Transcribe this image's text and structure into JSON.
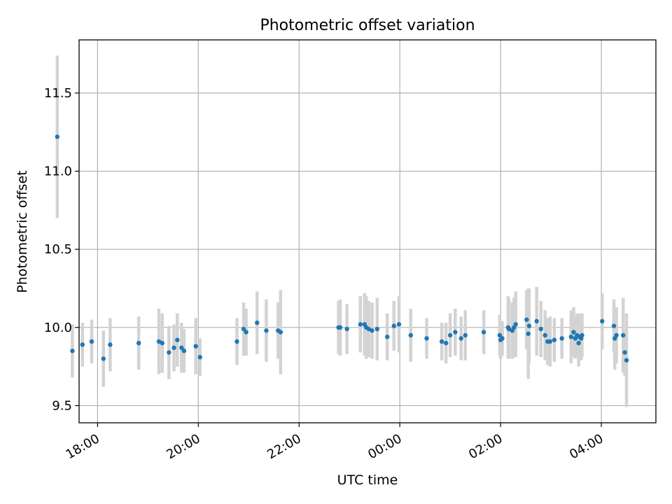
{
  "chart_data": {
    "type": "scatter",
    "title": "Photometric offset variation",
    "xlabel": "UTC time",
    "ylabel": "Photometric offset",
    "xlim": [
      "17:38",
      "05:05"
    ],
    "ylim": [
      9.39,
      11.84
    ],
    "x_ticks": [
      "18:00",
      "20:00",
      "22:00",
      "00:00",
      "02:00",
      "04:00"
    ],
    "y_ticks": [
      "9.5",
      "10.0",
      "10.5",
      "11.0",
      "11.5"
    ],
    "grid": true,
    "errorbar_color": "#d3d3d3",
    "point_color": "#1f77b4",
    "series": [
      {
        "x": [
          "17:12",
          "17:30",
          "17:42",
          "17:53",
          "18:07",
          "18:15",
          "18:49",
          "19:13",
          "19:17",
          "19:25",
          "19:31",
          "19:35",
          "19:40",
          "19:43",
          "19:57",
          "20:02",
          "20:46",
          "20:54",
          "20:57",
          "21:10",
          "21:21",
          "21:35",
          "21:38",
          "22:47",
          "22:49",
          "22:57",
          "23:13",
          "23:18",
          "23:20",
          "23:23",
          "23:27",
          "23:33",
          "23:45",
          "23:53",
          "23:59",
          "00:13",
          "00:32",
          "00:50",
          "00:55",
          "01:00",
          "01:06",
          "01:13",
          "01:18",
          "01:40",
          "01:59",
          "02:00",
          "02:02",
          "02:09",
          "02:10",
          "02:14",
          "02:16",
          "02:18",
          "02:31",
          "02:33",
          "02:34",
          "02:43",
          "02:48",
          "02:53",
          "02:56",
          "02:59",
          "03:04",
          "03:13",
          "03:24",
          "03:27",
          "03:29",
          "03:31",
          "03:33",
          "03:34",
          "03:36",
          "03:37",
          "04:01",
          "04:15",
          "04:16",
          "04:18",
          "04:26",
          "04:28",
          "04:30"
        ],
        "y": [
          11.22,
          9.85,
          9.89,
          9.91,
          9.8,
          9.89,
          9.9,
          9.91,
          9.9,
          9.84,
          9.87,
          9.92,
          9.87,
          9.85,
          9.88,
          9.81,
          9.91,
          9.99,
          9.97,
          10.03,
          9.98,
          9.98,
          9.97,
          10.0,
          10.0,
          9.99,
          10.02,
          10.02,
          10.0,
          9.99,
          9.98,
          9.99,
          9.94,
          10.01,
          10.02,
          9.95,
          9.93,
          9.91,
          9.9,
          9.95,
          9.97,
          9.93,
          9.95,
          9.97,
          9.95,
          9.92,
          9.93,
          10.0,
          9.99,
          9.98,
          10.0,
          10.02,
          10.05,
          9.96,
          10.01,
          10.04,
          9.99,
          9.95,
          9.91,
          9.91,
          9.92,
          9.93,
          9.94,
          9.97,
          9.93,
          9.95,
          9.9,
          9.94,
          9.93,
          9.95,
          10.04,
          10.01,
          9.93,
          9.95,
          9.95,
          9.84,
          9.79
        ],
        "yerr": [
          0.52,
          0.17,
          0.14,
          0.14,
          0.18,
          0.17,
          0.17,
          0.21,
          0.19,
          0.17,
          0.15,
          0.17,
          0.16,
          0.14,
          0.18,
          0.12,
          0.15,
          0.17,
          0.15,
          0.2,
          0.2,
          0.18,
          0.27,
          0.17,
          0.18,
          0.16,
          0.18,
          0.2,
          0.2,
          0.18,
          0.18,
          0.2,
          0.15,
          0.16,
          0.18,
          0.17,
          0.13,
          0.12,
          0.13,
          0.14,
          0.15,
          0.14,
          0.16,
          0.14,
          0.13,
          0.12,
          0.11,
          0.2,
          0.19,
          0.18,
          0.19,
          0.21,
          0.19,
          0.29,
          0.24,
          0.22,
          0.18,
          0.16,
          0.15,
          0.16,
          0.14,
          0.13,
          0.17,
          0.16,
          0.13,
          0.14,
          0.15,
          0.15,
          0.14,
          0.14,
          0.18,
          0.17,
          0.2,
          0.18,
          0.24,
          0.15,
          0.3
        ]
      }
    ]
  }
}
